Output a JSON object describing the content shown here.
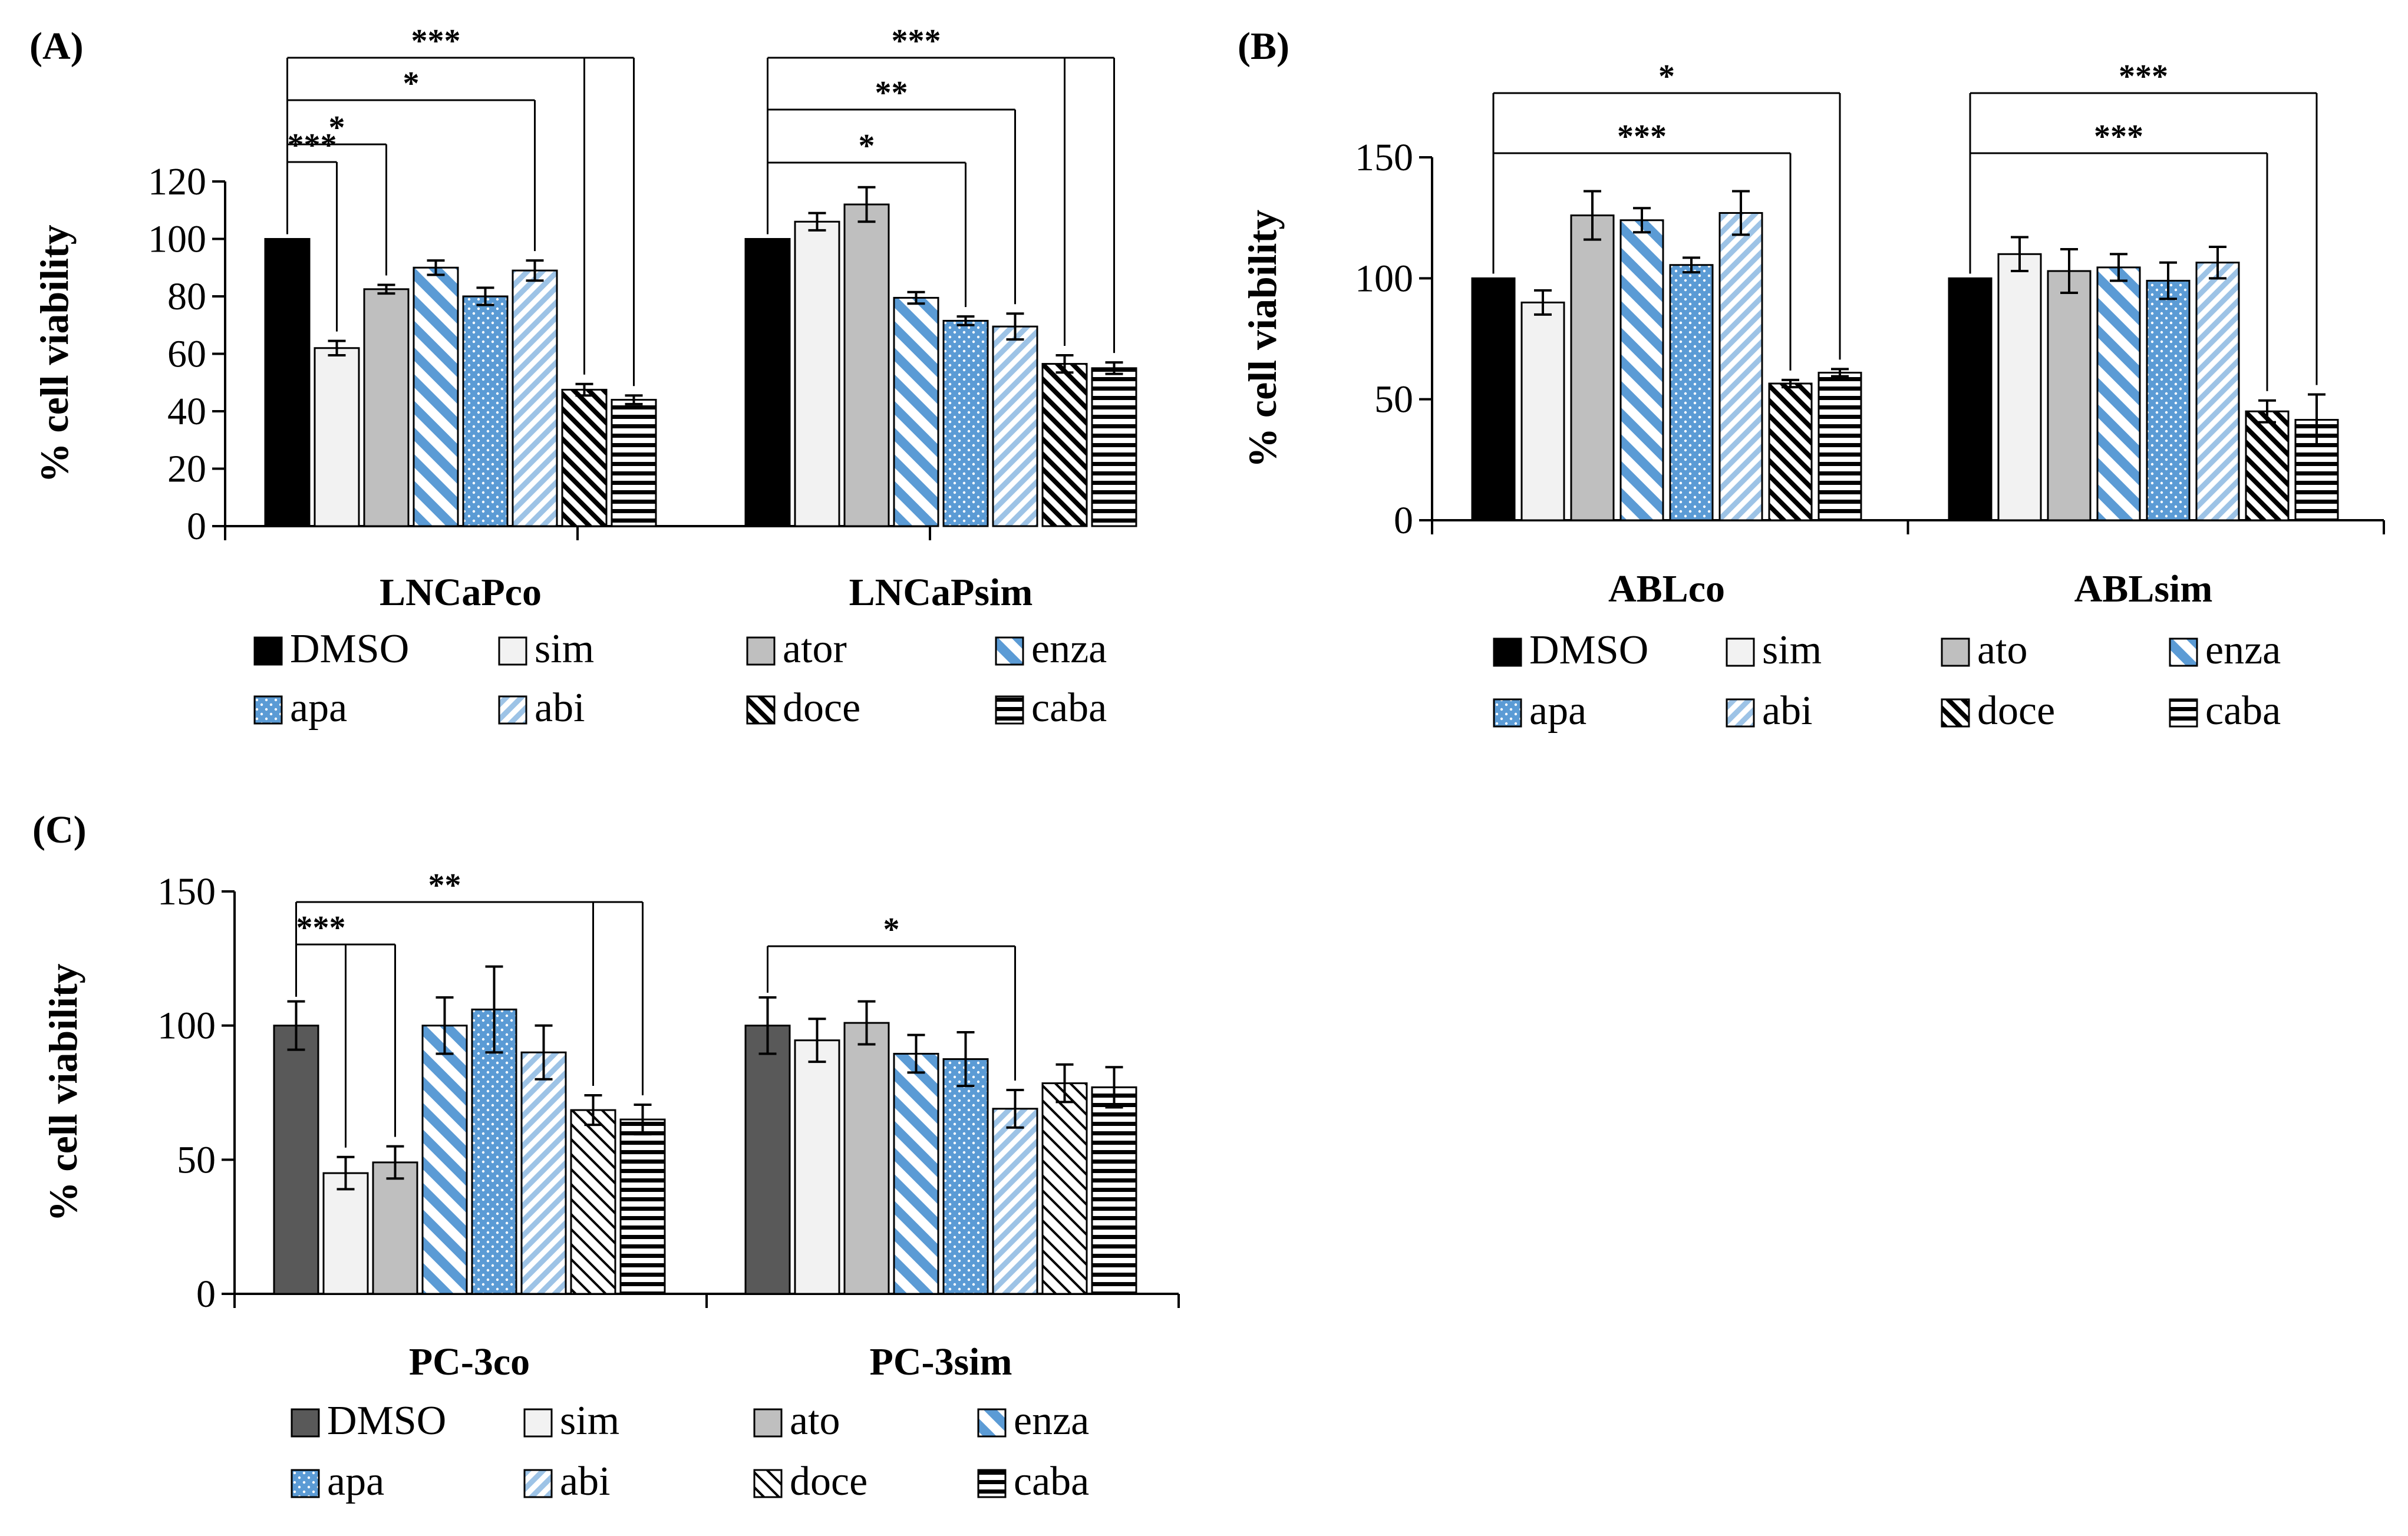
{
  "chart_data": [
    {
      "type": "bar",
      "panel_label": "(A)",
      "ylabel": "% cell viability",
      "ylim": [
        0,
        120
      ],
      "yticks": [
        "0",
        "20",
        "40",
        "60",
        "80",
        "100",
        "120"
      ],
      "groups": [
        {
          "name": "LNCaPco",
          "series": [
            {
              "name": "DMSO",
              "value": 100,
              "err": 0
            },
            {
              "name": "sim",
              "value": 62,
              "err": 2.5
            },
            {
              "name": "ator",
              "value": 82.5,
              "err": 1.5
            },
            {
              "name": "enza",
              "value": 90,
              "err": 2.5
            },
            {
              "name": "apa",
              "value": 80,
              "err": 3
            },
            {
              "name": "abi",
              "value": 89,
              "err": 3.5
            },
            {
              "name": "doce",
              "value": 47.5,
              "err": 2
            },
            {
              "name": "caba",
              "value": 44,
              "err": 1.5
            }
          ],
          "significance": [
            {
              "target": "sim",
              "label": "***"
            },
            {
              "target": "ator",
              "label": "*"
            },
            {
              "target": "abi",
              "label": "*"
            },
            {
              "target": "doce",
              "label": "***"
            },
            {
              "target": "caba",
              "label": ""
            }
          ]
        },
        {
          "name": "LNCaPsim",
          "series": [
            {
              "name": "DMSO",
              "value": 100,
              "err": 0
            },
            {
              "name": "sim",
              "value": 106,
              "err": 3
            },
            {
              "name": "ator",
              "value": 112,
              "err": 6
            },
            {
              "name": "enza",
              "value": 79.5,
              "err": 2
            },
            {
              "name": "apa",
              "value": 71.5,
              "err": 1.5
            },
            {
              "name": "abi",
              "value": 69.5,
              "err": 4.5
            },
            {
              "name": "doce",
              "value": 56.5,
              "err": 3
            },
            {
              "name": "caba",
              "value": 55,
              "err": 2
            }
          ],
          "significance": [
            {
              "target": "apa",
              "label": "*"
            },
            {
              "target": "abi",
              "label": "**"
            },
            {
              "target": "doce",
              "label": "***"
            },
            {
              "target": "caba",
              "label": ""
            }
          ]
        }
      ],
      "legend": [
        "DMSO",
        "sim",
        "ator",
        "enza",
        "apa",
        "abi",
        "doce",
        "caba"
      ]
    },
    {
      "type": "bar",
      "panel_label": "(B)",
      "ylabel": "% cell viability",
      "ylim": [
        0,
        150
      ],
      "yticks": [
        "0",
        "50",
        "100",
        "150"
      ],
      "groups": [
        {
          "name": "ABLco",
          "series": [
            {
              "name": "DMSO",
              "value": 100,
              "err": 0
            },
            {
              "name": "sim",
              "value": 90,
              "err": 5
            },
            {
              "name": "ato",
              "value": 126,
              "err": 10
            },
            {
              "name": "enza",
              "value": 124,
              "err": 5
            },
            {
              "name": "apa",
              "value": 105.5,
              "err": 3
            },
            {
              "name": "abi",
              "value": 127,
              "err": 9
            },
            {
              "name": "doce",
              "value": 56.5,
              "err": 1.5
            },
            {
              "name": "caba",
              "value": 61,
              "err": 1.5
            }
          ],
          "significance": [
            {
              "target": "doce",
              "label": "***"
            },
            {
              "target": "caba",
              "label": "*"
            }
          ]
        },
        {
          "name": "ABLsim",
          "series": [
            {
              "name": "DMSO",
              "value": 100,
              "err": 0
            },
            {
              "name": "sim",
              "value": 110,
              "err": 7
            },
            {
              "name": "ato",
              "value": 103,
              "err": 9
            },
            {
              "name": "enza",
              "value": 104.5,
              "err": 5.5
            },
            {
              "name": "apa",
              "value": 99,
              "err": 7.5
            },
            {
              "name": "abi",
              "value": 106.5,
              "err": 6.5
            },
            {
              "name": "doce",
              "value": 45,
              "err": 4.5
            },
            {
              "name": "caba",
              "value": 41.5,
              "err": 10.5
            }
          ],
          "significance": [
            {
              "target": "doce",
              "label": "***"
            },
            {
              "target": "caba",
              "label": "***"
            }
          ]
        }
      ],
      "legend": [
        "DMSO",
        "sim",
        "ato",
        "enza",
        "apa",
        "abi",
        "doce",
        "caba"
      ]
    },
    {
      "type": "bar",
      "panel_label": "(C)",
      "ylabel": "% cell viability",
      "ylim": [
        0,
        150
      ],
      "yticks": [
        "0",
        "50",
        "100",
        "150"
      ],
      "groups": [
        {
          "name": "PC-3co",
          "series": [
            {
              "name": "DMSO",
              "value": 100,
              "err": 9
            },
            {
              "name": "sim",
              "value": 45,
              "err": 6
            },
            {
              "name": "ato",
              "value": 49,
              "err": 6
            },
            {
              "name": "enza",
              "value": 100,
              "err": 10.5
            },
            {
              "name": "apa",
              "value": 106,
              "err": 16
            },
            {
              "name": "abi",
              "value": 90,
              "err": 10
            },
            {
              "name": "doce",
              "value": 68.5,
              "err": 5.5
            },
            {
              "name": "caba",
              "value": 65,
              "err": 5.5
            }
          ],
          "significance": [
            {
              "target": "sim",
              "label": "***"
            },
            {
              "target": "ato",
              "label": ""
            },
            {
              "target": "doce",
              "label": "**"
            },
            {
              "target": "caba",
              "label": ""
            }
          ]
        },
        {
          "name": "PC-3sim",
          "series": [
            {
              "name": "DMSO",
              "value": 100,
              "err": 10.5
            },
            {
              "name": "sim",
              "value": 94.5,
              "err": 8
            },
            {
              "name": "ato",
              "value": 101,
              "err": 8
            },
            {
              "name": "enza",
              "value": 89.5,
              "err": 7
            },
            {
              "name": "apa",
              "value": 87.5,
              "err": 10
            },
            {
              "name": "abi",
              "value": 69,
              "err": 7
            },
            {
              "name": "doce",
              "value": 78.5,
              "err": 7
            },
            {
              "name": "caba",
              "value": 77,
              "err": 7.5
            }
          ],
          "significance": [
            {
              "target": "abi",
              "label": "*"
            }
          ]
        }
      ],
      "legend": [
        "DMSO",
        "sim",
        "ato",
        "enza",
        "apa",
        "abi",
        "doce",
        "caba"
      ]
    }
  ],
  "colors": {
    "DMSO_AB": "#000000",
    "DMSO_C": "#595959",
    "sim": "#f2f2f2",
    "ator": "#bfbfbf",
    "blue": "#5b9bd5",
    "lightblue": "#9dc3e6",
    "axis": "#000000"
  }
}
